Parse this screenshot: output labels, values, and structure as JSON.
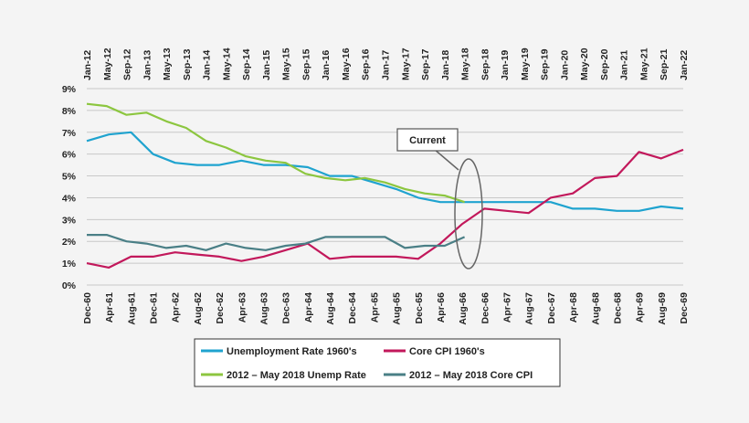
{
  "chart_data": {
    "type": "line",
    "title": "",
    "xlabel": "",
    "ylabel": "",
    "ylim": [
      0,
      9
    ],
    "y_ticks": [
      "0%",
      "1%",
      "2%",
      "3%",
      "4%",
      "5%",
      "6%",
      "7%",
      "8%",
      "9%"
    ],
    "grid": "horizontal",
    "x_top_ticks": [
      "Jan-12",
      "May-12",
      "Sep-12",
      "Jan-13",
      "May-13",
      "Sep-13",
      "Jan-14",
      "May-14",
      "Sep-14",
      "Jan-15",
      "May-15",
      "Sep-15",
      "Jan-16",
      "May-16",
      "Sep-16",
      "Jan-17",
      "May-17",
      "Sep-17",
      "Jan-18",
      "May-18",
      "Sep-18",
      "Jan-19",
      "May-19",
      "Sep-19",
      "Jan-20",
      "May-20",
      "Sep-20",
      "Jan-21",
      "May-21",
      "Sep-21",
      "Jan-22"
    ],
    "x_bottom_ticks": [
      "Dec-60",
      "Apr-61",
      "Aug-61",
      "Dec-61",
      "Apr-62",
      "Aug-62",
      "Dec-62",
      "Apr-63",
      "Aug-63",
      "Dec-63",
      "Apr-64",
      "Aug-64",
      "Dec-64",
      "Apr-65",
      "Aug-65",
      "Dec-65",
      "Apr-66",
      "Aug-66",
      "Dec-66",
      "Apr-67",
      "Aug-67",
      "Dec-67",
      "Apr-68",
      "Aug-68",
      "Dec-68",
      "Apr-69",
      "Aug-69",
      "Dec-69"
    ],
    "series": [
      {
        "name": "Unemployment Rate 1960's",
        "axis": "bottom",
        "color": "#1fa3cf",
        "x": [
          "Dec-60",
          "Apr-61",
          "Aug-61",
          "Dec-61",
          "Apr-62",
          "Aug-62",
          "Dec-62",
          "Apr-63",
          "Aug-63",
          "Dec-63",
          "Apr-64",
          "Aug-64",
          "Dec-64",
          "Apr-65",
          "Aug-65",
          "Dec-65",
          "Apr-66",
          "Aug-66",
          "Dec-66",
          "Apr-67",
          "Aug-67",
          "Dec-67",
          "Apr-68",
          "Aug-68",
          "Dec-68",
          "Apr-69",
          "Aug-69",
          "Dec-69"
        ],
        "values": [
          6.6,
          6.9,
          7.0,
          6.0,
          5.6,
          5.5,
          5.5,
          5.7,
          5.5,
          5.5,
          5.4,
          5.0,
          5.0,
          4.7,
          4.4,
          4.0,
          3.8,
          3.8,
          3.8,
          3.8,
          3.8,
          3.8,
          3.5,
          3.5,
          3.4,
          3.4,
          3.6,
          3.5
        ]
      },
      {
        "name": "Core CPI 1960's",
        "axis": "bottom",
        "color": "#c2185b",
        "x": [
          "Dec-60",
          "Apr-61",
          "Aug-61",
          "Dec-61",
          "Apr-62",
          "Aug-62",
          "Dec-62",
          "Apr-63",
          "Aug-63",
          "Dec-63",
          "Apr-64",
          "Aug-64",
          "Dec-64",
          "Apr-65",
          "Aug-65",
          "Dec-65",
          "Apr-66",
          "Aug-66",
          "Dec-66",
          "Apr-67",
          "Aug-67",
          "Dec-67",
          "Apr-68",
          "Aug-68",
          "Dec-68",
          "Apr-69",
          "Aug-69",
          "Dec-69"
        ],
        "values": [
          1.0,
          0.8,
          1.3,
          1.3,
          1.5,
          1.4,
          1.3,
          1.1,
          1.3,
          1.6,
          1.9,
          1.2,
          1.3,
          1.3,
          1.3,
          1.2,
          1.9,
          2.8,
          3.5,
          3.4,
          3.3,
          4.0,
          4.2,
          4.9,
          5.0,
          6.1,
          5.8,
          6.2
        ]
      },
      {
        "name": "2012 – May 2018 Unemp Rate",
        "axis": "top",
        "color": "#8cc63f",
        "x": [
          "Jan-12",
          "May-12",
          "Sep-12",
          "Jan-13",
          "May-13",
          "Sep-13",
          "Jan-14",
          "May-14",
          "Sep-14",
          "Jan-15",
          "May-15",
          "Sep-15",
          "Jan-16",
          "May-16",
          "Sep-16",
          "Jan-17",
          "May-17",
          "Sep-17",
          "Jan-18",
          "May-18"
        ],
        "values": [
          8.3,
          8.2,
          7.8,
          7.9,
          7.5,
          7.2,
          6.6,
          6.3,
          5.9,
          5.7,
          5.6,
          5.1,
          4.9,
          4.8,
          4.9,
          4.7,
          4.4,
          4.2,
          4.1,
          3.8
        ]
      },
      {
        "name": "2012 – May 2018 Core CPI",
        "axis": "top",
        "color": "#4a7f86",
        "x": [
          "Jan-12",
          "May-12",
          "Sep-12",
          "Jan-13",
          "May-13",
          "Sep-13",
          "Jan-14",
          "May-14",
          "Sep-14",
          "Jan-15",
          "May-15",
          "Sep-15",
          "Jan-16",
          "May-16",
          "Sep-16",
          "Jan-17",
          "May-17",
          "Sep-17",
          "Jan-18",
          "May-18"
        ],
        "values": [
          2.3,
          2.3,
          2.0,
          1.9,
          1.7,
          1.8,
          1.6,
          1.9,
          1.7,
          1.6,
          1.8,
          1.9,
          2.2,
          2.2,
          2.2,
          2.2,
          1.7,
          1.8,
          1.8,
          2.2
        ]
      }
    ],
    "annotations": [
      {
        "text": "Current"
      }
    ],
    "legend": "bottom"
  }
}
